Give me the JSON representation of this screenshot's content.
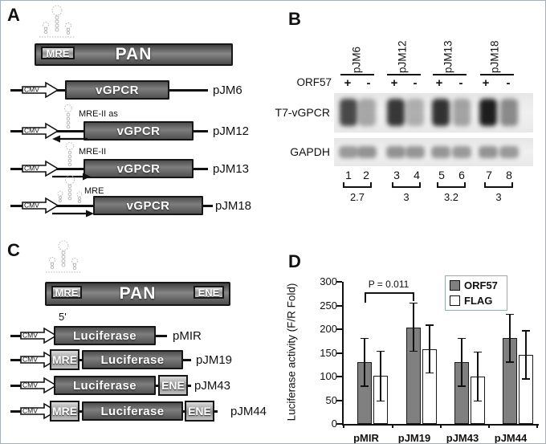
{
  "colors": {
    "gene_box_dark": "#5f5f5f",
    "element_box_gray": "#b0b0b0",
    "band_dark": "#1e1e1e",
    "bar_gray": "#808080",
    "bar_white": "#ffffff"
  },
  "panelA": {
    "label": "A",
    "pan_bar": {
      "mre": "MRE",
      "title": "PAN"
    },
    "constructs": [
      {
        "promoter": "CMV",
        "insert": "",
        "gene": "vGPCR",
        "label": "pJM6",
        "arrow": "none"
      },
      {
        "promoter": "CMV",
        "insert": "MRE-II as",
        "gene": "vGPCR",
        "label": "pJM12",
        "arrow": "left"
      },
      {
        "promoter": "CMV",
        "insert": "MRE-II",
        "gene": "vGPCR",
        "label": "pJM13",
        "arrow": "right"
      },
      {
        "promoter": "CMV",
        "insert": "MRE",
        "gene": "vGPCR",
        "label": "pJM18",
        "arrow": "right"
      }
    ]
  },
  "panelB": {
    "label": "B",
    "groups": [
      "pJM6",
      "pJM12",
      "pJM13",
      "pJM18"
    ],
    "condition_label": "ORF57",
    "condition_signs": [
      "+",
      "-",
      "+",
      "-",
      "+",
      "-",
      "+",
      "-"
    ],
    "rows": [
      {
        "label": "T7-vGPCR",
        "band_intensities": [
          0.8,
          0.34,
          0.88,
          0.3,
          0.9,
          0.36,
          1.0,
          0.48
        ]
      },
      {
        "label": "GAPDH",
        "band_intensities": [
          0.52,
          0.56,
          0.56,
          0.54,
          0.54,
          0.52,
          0.56,
          0.52
        ]
      }
    ],
    "lane_numbers": [
      "1",
      "2",
      "3",
      "4",
      "5",
      "6",
      "7",
      "8"
    ],
    "ratios": [
      "2.7",
      "3",
      "3.2",
      "3"
    ]
  },
  "panelC": {
    "label": "C",
    "pan_bar": {
      "mre": "MRE",
      "title": "PAN",
      "ene": "ENE"
    },
    "five_prime": "5'",
    "constructs": [
      {
        "promoter": "CMV",
        "mre": "",
        "gene": "Luciferase",
        "ene": "",
        "label": "pMIR"
      },
      {
        "promoter": "CMV",
        "mre": "MRE",
        "gene": "Luciferase",
        "ene": "",
        "label": "pJM19"
      },
      {
        "promoter": "CMV",
        "mre": "",
        "gene": "Luciferase",
        "ene": "ENE",
        "label": "pJM43"
      },
      {
        "promoter": "CMV",
        "mre": "MRE",
        "gene": "Luciferase",
        "ene": "ENE",
        "label": "pJM44"
      }
    ]
  },
  "panelD": {
    "label": "D",
    "annotation": "P = 0.011"
  },
  "chart_data": {
    "type": "bar",
    "title": "",
    "categories": [
      "pMIR",
      "pJM19",
      "pJM43",
      "pJM44"
    ],
    "series": [
      {
        "name": "ORF57",
        "color": "#808080",
        "values": [
          130,
          204,
          130,
          181
        ],
        "errors": [
          52,
          52,
          52,
          52
        ]
      },
      {
        "name": "FLAG",
        "color": "#ffffff",
        "values": [
          101,
          158,
          100,
          146
        ],
        "errors": [
          54,
          52,
          53,
          52
        ]
      }
    ],
    "xlabel": "",
    "ylabel": "Luciferase activity (F/R Fold)",
    "ylim": [
      0,
      300
    ],
    "yticks": [
      0,
      50,
      100,
      150,
      200,
      250,
      300
    ],
    "grid": false,
    "legend_position": "top-right",
    "annotation": {
      "text": "P = 0.011",
      "from": "pMIR ORF57 bar",
      "to": "pJM19 ORF57 bar"
    }
  }
}
